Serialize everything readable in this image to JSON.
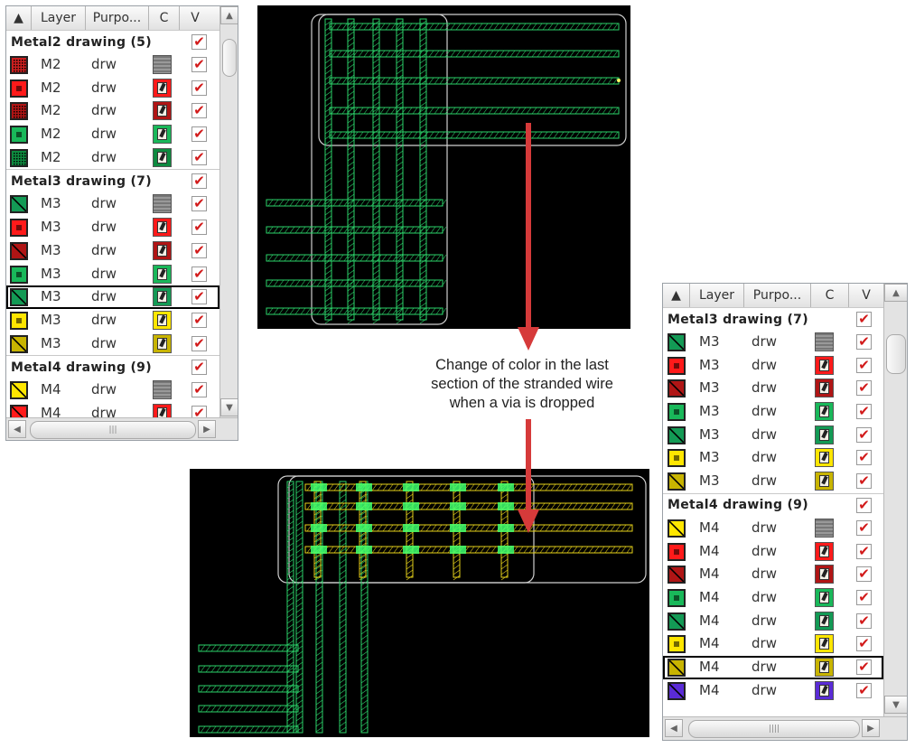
{
  "panel_headers": {
    "layer": "Layer",
    "purpose1": "Purpo...",
    "purpose2": "Purpo...",
    "c": "C",
    "v": "V"
  },
  "panel1": {
    "sections": [
      {
        "title": "Metal2 drawing (5)",
        "rows": [
          {
            "layer": "M2",
            "purpose": "drw",
            "color": "#cc1f1f",
            "pattern": "dots"
          },
          {
            "layer": "M2",
            "purpose": "drw",
            "color": "#ff1a1a",
            "pattern": "solid"
          },
          {
            "layer": "M2",
            "purpose": "drw",
            "color": "#b01515",
            "pattern": "dots"
          },
          {
            "layer": "M2",
            "purpose": "drw",
            "color": "#19b85a",
            "pattern": "solid"
          },
          {
            "layer": "M2",
            "purpose": "drw",
            "color": "#0e8a3f",
            "pattern": "dots"
          }
        ]
      },
      {
        "title": "Metal3 drawing (7)",
        "rows": [
          {
            "layer": "M3",
            "purpose": "drw",
            "color": "#139a55",
            "pattern": "hatch"
          },
          {
            "layer": "M3",
            "purpose": "drw",
            "color": "#ff1a1a",
            "pattern": "solid"
          },
          {
            "layer": "M3",
            "purpose": "drw",
            "color": "#b01515",
            "pattern": "hatch"
          },
          {
            "layer": "M3",
            "purpose": "drw",
            "color": "#19b85a",
            "pattern": "solid"
          },
          {
            "layer": "M3",
            "purpose": "drw",
            "color": "#139a55",
            "pattern": "hatch",
            "selected": true
          },
          {
            "layer": "M3",
            "purpose": "drw",
            "color": "#ffe600",
            "pattern": "solid"
          },
          {
            "layer": "M3",
            "purpose": "drw",
            "color": "#c8b400",
            "pattern": "hatch"
          }
        ]
      },
      {
        "title": "Metal4 drawing (9)",
        "rows": [
          {
            "layer": "M4",
            "purpose": "drw",
            "color": "#ffe600",
            "pattern": "hatch"
          },
          {
            "layer": "M4",
            "purpose": "drw",
            "color": "#ff1a1a",
            "pattern": "hatch"
          }
        ]
      }
    ]
  },
  "panel2": {
    "sections": [
      {
        "title": "Metal3 drawing (7)",
        "rows": [
          {
            "layer": "M3",
            "purpose": "drw",
            "color": "#139a55",
            "pattern": "hatch"
          },
          {
            "layer": "M3",
            "purpose": "drw",
            "color": "#ff1a1a",
            "pattern": "solid"
          },
          {
            "layer": "M3",
            "purpose": "drw",
            "color": "#b01515",
            "pattern": "hatch"
          },
          {
            "layer": "M3",
            "purpose": "drw",
            "color": "#19b85a",
            "pattern": "solid"
          },
          {
            "layer": "M3",
            "purpose": "drw",
            "color": "#139a55",
            "pattern": "hatch"
          },
          {
            "layer": "M3",
            "purpose": "drw",
            "color": "#ffe600",
            "pattern": "solid"
          },
          {
            "layer": "M3",
            "purpose": "drw",
            "color": "#c8b400",
            "pattern": "hatch"
          }
        ]
      },
      {
        "title": "Metal4 drawing (9)",
        "rows": [
          {
            "layer": "M4",
            "purpose": "drw",
            "color": "#ffe600",
            "pattern": "hatch"
          },
          {
            "layer": "M4",
            "purpose": "drw",
            "color": "#ff1a1a",
            "pattern": "solid"
          },
          {
            "layer": "M4",
            "purpose": "drw",
            "color": "#b01515",
            "pattern": "hatch"
          },
          {
            "layer": "M4",
            "purpose": "drw",
            "color": "#19b85a",
            "pattern": "solid"
          },
          {
            "layer": "M4",
            "purpose": "drw",
            "color": "#139a55",
            "pattern": "hatch"
          },
          {
            "layer": "M4",
            "purpose": "drw",
            "color": "#ffe600",
            "pattern": "solid"
          },
          {
            "layer": "M4",
            "purpose": "drw",
            "color": "#c8b400",
            "pattern": "hatch",
            "selected": true
          },
          {
            "layer": "M4",
            "purpose": "drw",
            "color": "#5a2bd6",
            "pattern": "hatch"
          }
        ]
      }
    ]
  },
  "annotation": [
    "Change of color in the last",
    "section of the stranded wire",
    "when a via is dropped"
  ],
  "colors": {
    "wire_green": "#2bd36a",
    "wire_yellow": "#e6d21a",
    "via_green": "#3dff6e",
    "arrow_red": "#d63a3a",
    "check_red": "#d21a1a"
  }
}
